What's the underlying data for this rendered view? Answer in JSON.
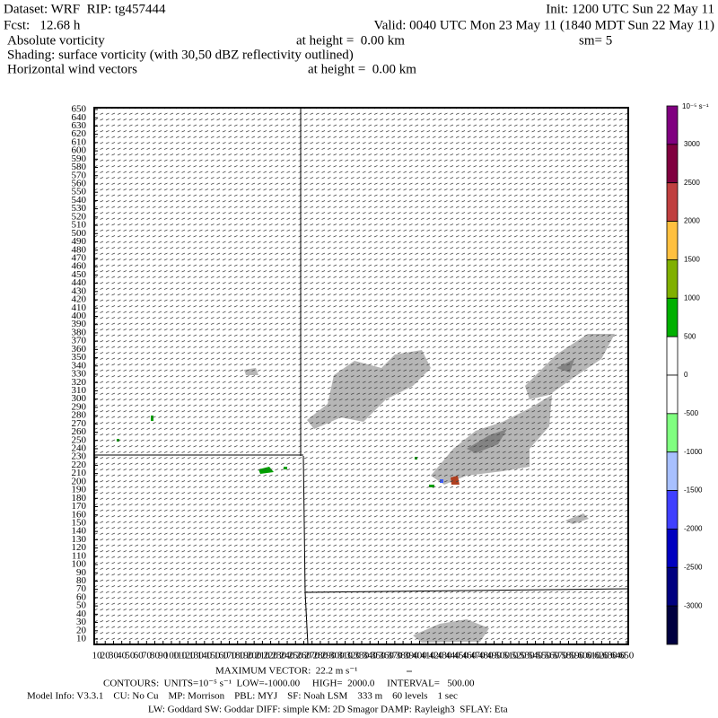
{
  "header": {
    "dataset": "Dataset: WRF  RIP: tg457444",
    "init": "Init: 1200 UTC Sun 22 May 11",
    "fcst": "Fcst:   12.68 h",
    "valid": "Valid: 0040 UTC Mon 23 May 11 (1840 MDT Sun 22 May 11)",
    "field": "Absolute vorticity",
    "field_height": "at height =  0.00 km",
    "smoothing": "sm= 5",
    "shading": "Shading: surface vorticity (with 30,50 dBZ reflectivity outlined)",
    "vectors": "Horizontal wind vectors",
    "vectors_height": "at height =  0.00 km"
  },
  "axes": {
    "yticks": [
      10,
      20,
      30,
      40,
      50,
      60,
      70,
      80,
      90,
      100,
      110,
      120,
      130,
      140,
      150,
      160,
      170,
      180,
      190,
      200,
      210,
      220,
      230,
      240,
      250,
      260,
      270,
      280,
      290,
      300,
      310,
      320,
      330,
      340,
      350,
      360,
      370,
      380,
      390,
      400,
      410,
      420,
      430,
      440,
      450,
      460,
      470,
      480,
      490,
      500,
      510,
      520,
      530,
      540,
      550,
      560,
      570,
      580,
      590,
      600,
      610,
      620,
      630,
      640,
      650
    ],
    "xticks": [
      10,
      20,
      30,
      40,
      50,
      60,
      70,
      80,
      90,
      100,
      110,
      120,
      130,
      140,
      150,
      160,
      170,
      180,
      190,
      200,
      210,
      220,
      230,
      240,
      250,
      260,
      270,
      280,
      290,
      300,
      310,
      320,
      330,
      340,
      350,
      360,
      370,
      380,
      390,
      400,
      410,
      420,
      430,
      440,
      450,
      460,
      470,
      480,
      490,
      500,
      510,
      520,
      530,
      540,
      550,
      560,
      570,
      580,
      590,
      600,
      610,
      620,
      630,
      640,
      650
    ],
    "lim": [
      10,
      650
    ]
  },
  "colorbar": {
    "unit": "10⁻⁵ s⁻¹",
    "levels": [
      3000,
      2500,
      2000,
      1500,
      1000,
      500,
      0,
      -500,
      -1000,
      -1500,
      -2000,
      -2500,
      -3000
    ],
    "colors": [
      "#800080",
      "#800040",
      "#c04040",
      "#ffc040",
      "#80b000",
      "#00b000",
      "#ffffff",
      "#ffffff",
      "#80ff80",
      "#a8c0ff",
      "#4040ff",
      "#0000c0",
      "#000080",
      "#000040"
    ]
  },
  "footer": {
    "max_vector": "MAXIMUM VECTOR:  22.2 m s⁻¹",
    "contours": "CONTOURS:  UNITS=10⁻⁵ s⁻¹  LOW=-1000.00     HIGH=  2000.0     INTERVAL=   500.00",
    "model_info": "Model Info: V3.3.1    CU: No Cu    MP: Morrison    PBL: MYJ    SF: Noah LSM    333 m    60 levels    1 sec",
    "physics": "LW: Goddard SW: Goddar DIFF: simple KM: 2D Smagor DAMP: Rayleigh3  SFLAY: Eta"
  }
}
